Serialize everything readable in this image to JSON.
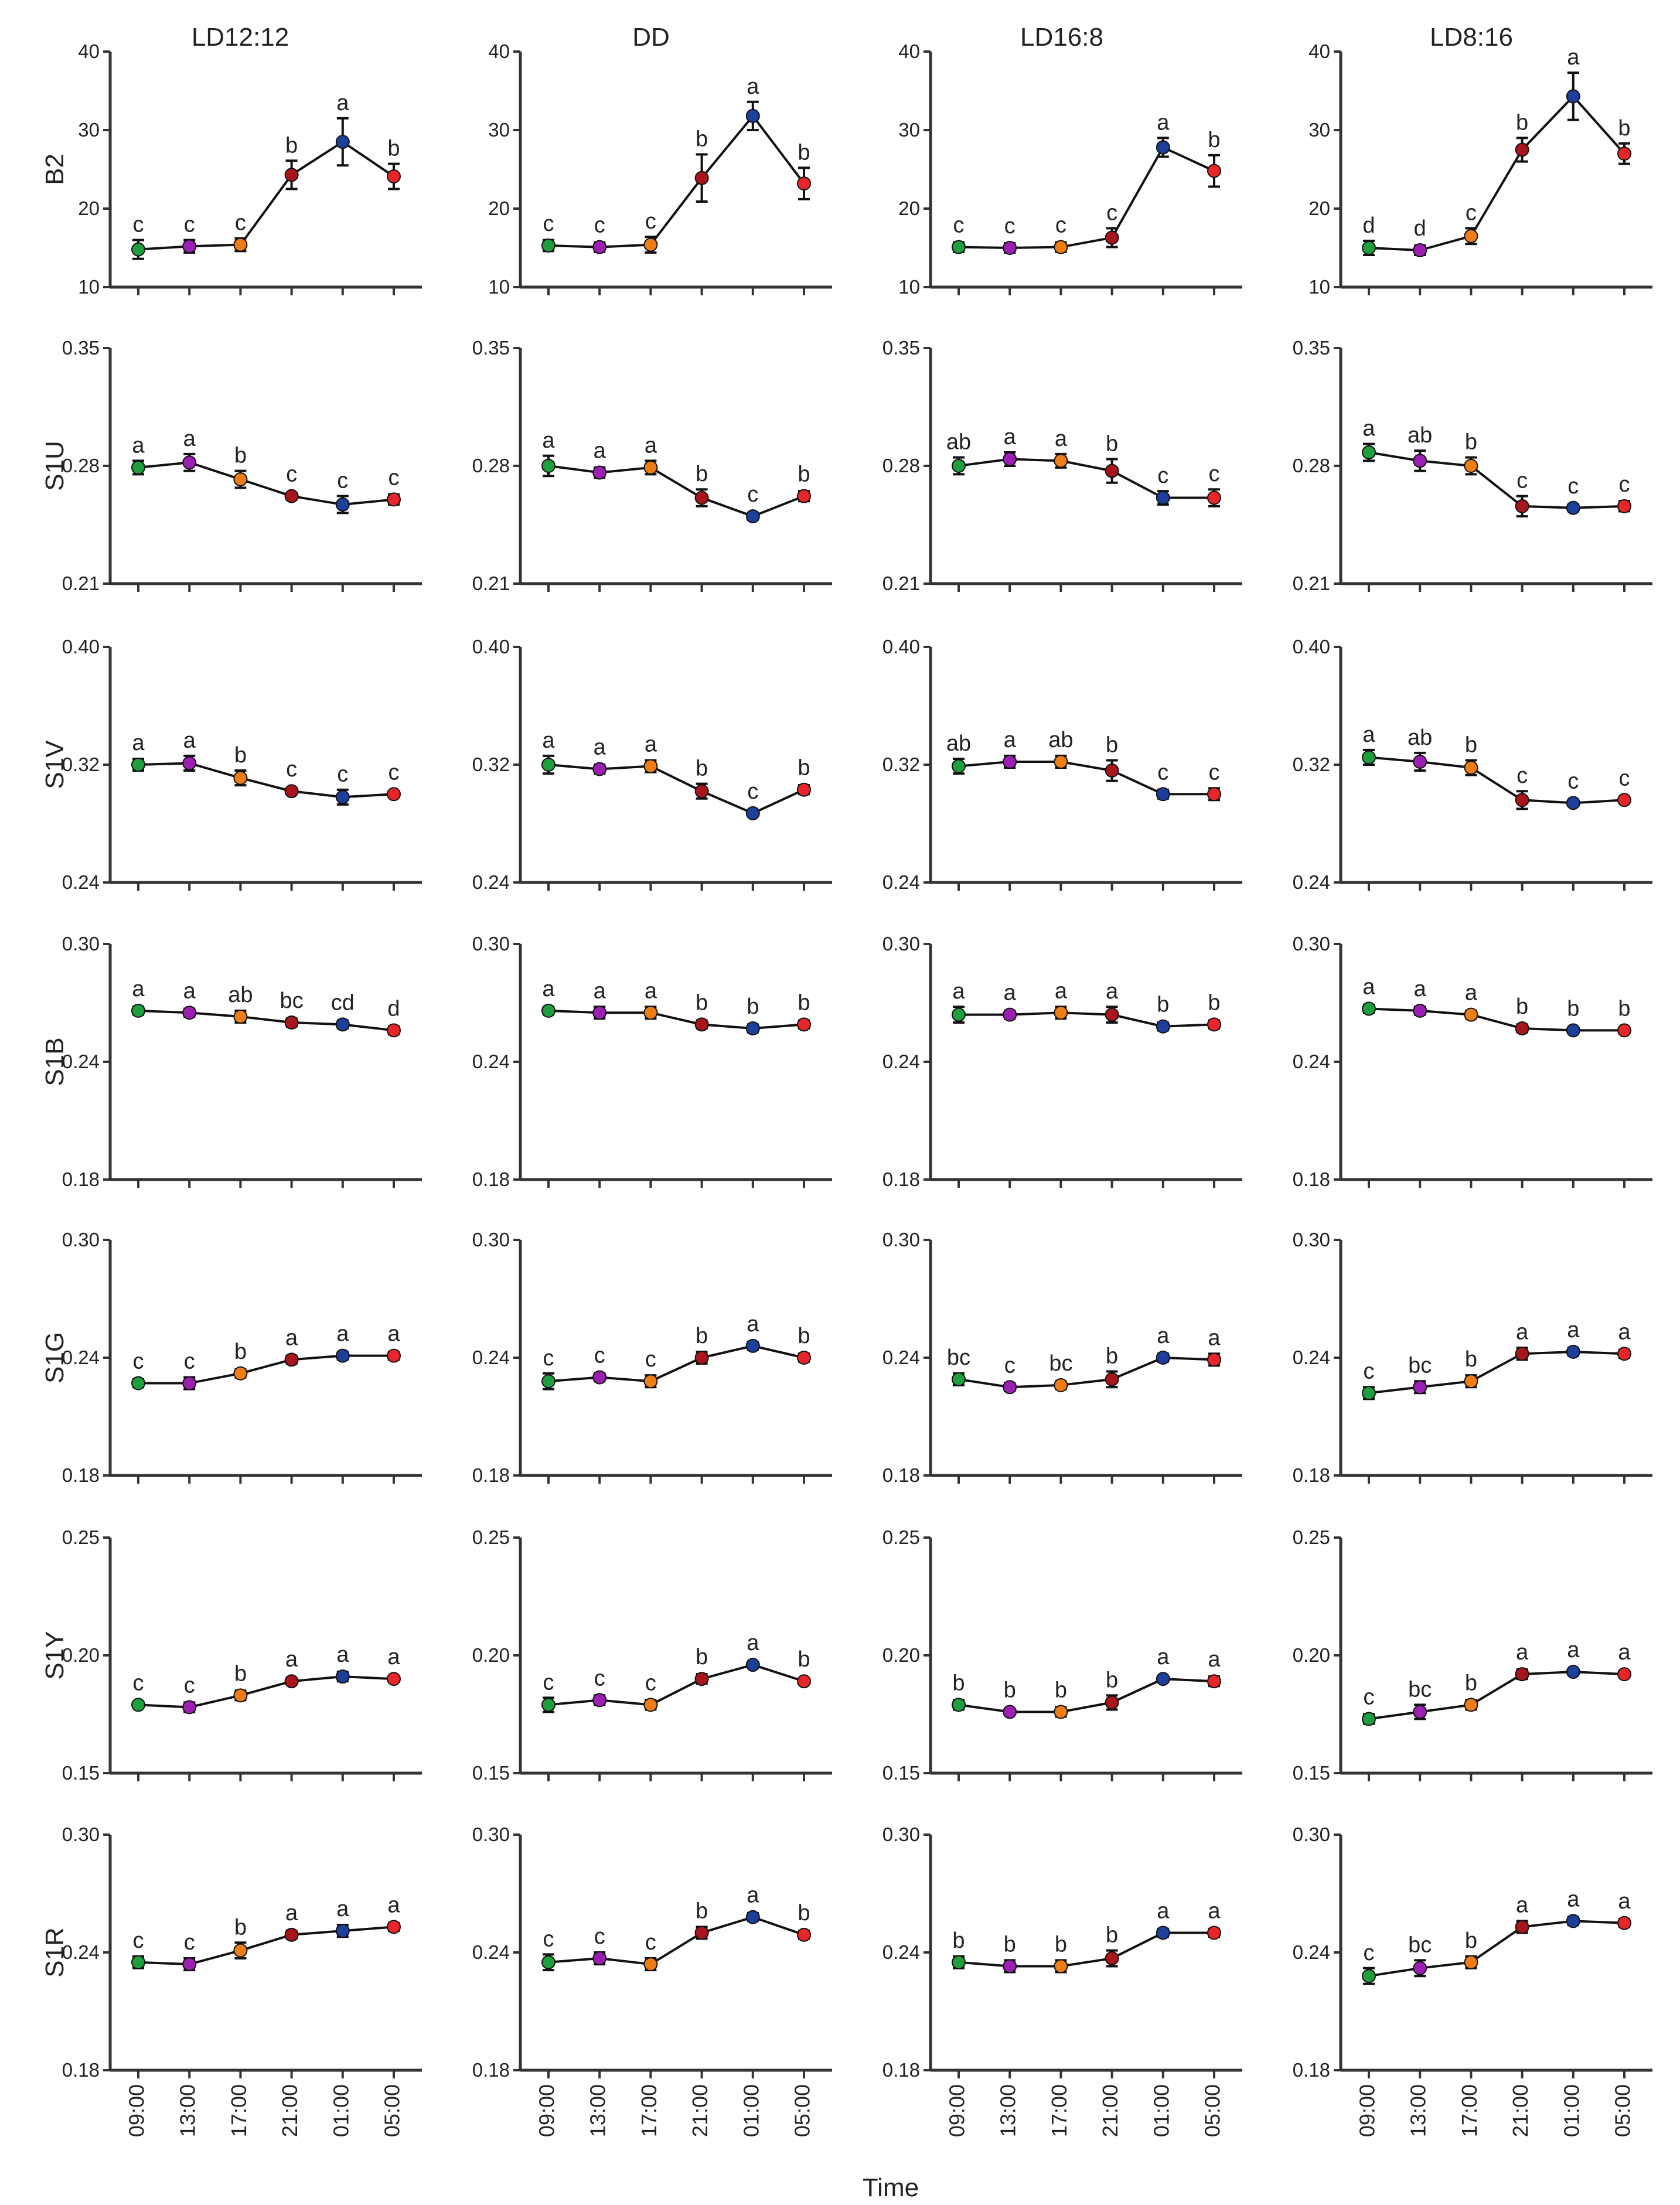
{
  "chart_data": {
    "type": "line",
    "layout": "7x4 grid of small-multiple line plots with error bars",
    "col_titles": [
      "LD12:12",
      "DD",
      "LD16:8",
      "LD8:16"
    ],
    "x": [
      "09:00",
      "13:00",
      "17:00",
      "21:00",
      "01:00",
      "05:00"
    ],
    "xlabel": "Time",
    "point_colors": [
      "#1e9e3c",
      "#9b1fb0",
      "#ef7d16",
      "#a8161c",
      "#1d3f9c",
      "#e8262a"
    ],
    "rows": [
      {
        "label": "B2",
        "ylim": [
          10,
          40
        ],
        "yticks": [
          "40",
          "30",
          "20",
          "10"
        ],
        "panels": [
          {
            "values": [
              14.8,
              15.2,
              15.4,
              24.3,
              28.5,
              24.1
            ],
            "err": [
              1.2,
              0.8,
              0.8,
              1.8,
              3.0,
              1.6
            ],
            "sig": [
              "c",
              "c",
              "c",
              "b",
              "a",
              "b"
            ]
          },
          {
            "values": [
              15.3,
              15.1,
              15.4,
              23.9,
              31.8,
              23.2
            ],
            "err": [
              0.7,
              0.6,
              1.0,
              3.0,
              1.8,
              2.0
            ],
            "sig": [
              "c",
              "c",
              "c",
              "b",
              "a",
              "b"
            ]
          },
          {
            "values": [
              15.1,
              15.0,
              15.1,
              16.3,
              27.8,
              24.8
            ],
            "err": [
              0.6,
              0.6,
              0.6,
              1.2,
              1.2,
              2.0
            ],
            "sig": [
              "c",
              "c",
              "c",
              "c",
              "a",
              "b"
            ]
          },
          {
            "values": [
              15.0,
              14.7,
              16.5,
              27.5,
              34.3,
              27.0
            ],
            "err": [
              0.9,
              0.6,
              1.0,
              1.5,
              3.0,
              1.3
            ],
            "sig": [
              "d",
              "d",
              "c",
              "b",
              "a",
              "b"
            ]
          }
        ]
      },
      {
        "label": "S1U",
        "ylim": [
          0.21,
          0.35
        ],
        "yticks": [
          "0.35",
          "0.28",
          "0.21"
        ],
        "panels": [
          {
            "values": [
              0.279,
              0.282,
              0.272,
              0.262,
              0.257,
              0.26
            ],
            "err": [
              0.004,
              0.005,
              0.005,
              0.002,
              0.005,
              0.003
            ],
            "sig": [
              "a",
              "a",
              "b",
              "c",
              "c",
              "c"
            ]
          },
          {
            "values": [
              0.28,
              0.276,
              0.279,
              0.261,
              0.25,
              0.262
            ],
            "err": [
              0.006,
              0.003,
              0.004,
              0.005,
              0.002,
              0.003
            ],
            "sig": [
              "a",
              "a",
              "a",
              "b",
              "c",
              "b"
            ]
          },
          {
            "values": [
              0.28,
              0.284,
              0.283,
              0.277,
              0.261,
              0.261
            ],
            "err": [
              0.005,
              0.004,
              0.004,
              0.007,
              0.004,
              0.005
            ],
            "sig": [
              "ab",
              "a",
              "a",
              "b",
              "c",
              "c"
            ]
          },
          {
            "values": [
              0.288,
              0.283,
              0.28,
              0.256,
              0.255,
              0.256
            ],
            "err": [
              0.005,
              0.006,
              0.005,
              0.006,
              0.002,
              0.003
            ],
            "sig": [
              "a",
              "ab",
              "b",
              "c",
              "c",
              "c"
            ]
          }
        ]
      },
      {
        "label": "S1V",
        "ylim": [
          0.24,
          0.4
        ],
        "yticks": [
          "0.40",
          "0.32",
          "0.24"
        ],
        "panels": [
          {
            "values": [
              0.32,
              0.321,
              0.311,
              0.302,
              0.298,
              0.3
            ],
            "err": [
              0.004,
              0.005,
              0.005,
              0.002,
              0.005,
              0.002
            ],
            "sig": [
              "a",
              "a",
              "b",
              "c",
              "c",
              "c"
            ]
          },
          {
            "values": [
              0.32,
              0.317,
              0.319,
              0.302,
              0.287,
              0.303
            ],
            "err": [
              0.006,
              0.003,
              0.004,
              0.005,
              0.002,
              0.003
            ],
            "sig": [
              "a",
              "a",
              "a",
              "b",
              "c",
              "b"
            ]
          },
          {
            "values": [
              0.319,
              0.322,
              0.322,
              0.316,
              0.3,
              0.3
            ],
            "err": [
              0.005,
              0.004,
              0.004,
              0.007,
              0.003,
              0.004
            ],
            "sig": [
              "ab",
              "a",
              "ab",
              "b",
              "c",
              "c"
            ]
          },
          {
            "values": [
              0.325,
              0.322,
              0.318,
              0.296,
              0.294,
              0.296
            ],
            "err": [
              0.005,
              0.006,
              0.005,
              0.006,
              0.002,
              0.002
            ],
            "sig": [
              "a",
              "ab",
              "b",
              "c",
              "c",
              "c"
            ]
          }
        ]
      },
      {
        "label": "S1B",
        "ylim": [
          0.18,
          0.3
        ],
        "yticks": [
          "0.30",
          "0.24",
          "0.18"
        ],
        "panels": [
          {
            "values": [
              0.266,
              0.265,
              0.263,
              0.26,
              0.259,
              0.256
            ],
            "err": [
              0.002,
              0.002,
              0.003,
              0.002,
              0.002,
              0.002
            ],
            "sig": [
              "a",
              "a",
              "ab",
              "bc",
              "cd",
              "d"
            ]
          },
          {
            "values": [
              0.266,
              0.265,
              0.265,
              0.259,
              0.257,
              0.259
            ],
            "err": [
              0.002,
              0.003,
              0.003,
              0.002,
              0.002,
              0.002
            ],
            "sig": [
              "a",
              "a",
              "a",
              "b",
              "b",
              "b"
            ]
          },
          {
            "values": [
              0.264,
              0.264,
              0.265,
              0.264,
              0.258,
              0.259
            ],
            "err": [
              0.004,
              0.002,
              0.003,
              0.004,
              0.002,
              0.002
            ],
            "sig": [
              "a",
              "a",
              "a",
              "a",
              "b",
              "b"
            ]
          },
          {
            "values": [
              0.267,
              0.266,
              0.264,
              0.257,
              0.256,
              0.256
            ],
            "err": [
              0.002,
              0.002,
              0.002,
              0.002,
              0.001,
              0.001
            ],
            "sig": [
              "a",
              "a",
              "a",
              "b",
              "b",
              "b"
            ]
          }
        ]
      },
      {
        "label": "S1G",
        "ylim": [
          0.18,
          0.3
        ],
        "yticks": [
          "0.30",
          "0.24",
          "0.18"
        ],
        "panels": [
          {
            "values": [
              0.227,
              0.227,
              0.232,
              0.239,
              0.241,
              0.241
            ],
            "err": [
              0.002,
              0.003,
              0.002,
              0.002,
              0.002,
              0.002
            ],
            "sig": [
              "c",
              "c",
              "b",
              "a",
              "a",
              "a"
            ]
          },
          {
            "values": [
              0.228,
              0.23,
              0.228,
              0.24,
              0.246,
              0.24
            ],
            "err": [
              0.004,
              0.002,
              0.003,
              0.003,
              0.002,
              0.002
            ],
            "sig": [
              "c",
              "c",
              "c",
              "b",
              "a",
              "b"
            ]
          },
          {
            "values": [
              0.229,
              0.225,
              0.226,
              0.229,
              0.24,
              0.239
            ],
            "err": [
              0.003,
              0.002,
              0.002,
              0.004,
              0.002,
              0.003
            ],
            "sig": [
              "bc",
              "c",
              "bc",
              "b",
              "a",
              "a"
            ]
          },
          {
            "values": [
              0.222,
              0.225,
              0.228,
              0.242,
              0.243,
              0.242
            ],
            "err": [
              0.003,
              0.003,
              0.003,
              0.003,
              0.002,
              0.002
            ],
            "sig": [
              "c",
              "bc",
              "b",
              "a",
              "a",
              "a"
            ]
          }
        ]
      },
      {
        "label": "S1Y",
        "ylim": [
          0.15,
          0.25
        ],
        "yticks": [
          "0.25",
          "0.20",
          "0.15"
        ],
        "panels": [
          {
            "values": [
              0.179,
              0.178,
              0.183,
              0.189,
              0.191,
              0.19
            ],
            "err": [
              0.001,
              0.002,
              0.002,
              0.001,
              0.002,
              0.001
            ],
            "sig": [
              "c",
              "c",
              "b",
              "a",
              "a",
              "a"
            ]
          },
          {
            "values": [
              0.179,
              0.181,
              0.179,
              0.19,
              0.196,
              0.189
            ],
            "err": [
              0.003,
              0.002,
              0.002,
              0.002,
              0.001,
              0.001
            ],
            "sig": [
              "c",
              "c",
              "c",
              "b",
              "a",
              "b"
            ]
          },
          {
            "values": [
              0.179,
              0.176,
              0.176,
              0.18,
              0.19,
              0.189
            ],
            "err": [
              0.002,
              0.001,
              0.002,
              0.003,
              0.001,
              0.002
            ],
            "sig": [
              "b",
              "b",
              "b",
              "b",
              "a",
              "a"
            ]
          },
          {
            "values": [
              0.173,
              0.176,
              0.179,
              0.192,
              0.193,
              0.192
            ],
            "err": [
              0.002,
              0.003,
              0.002,
              0.002,
              0.001,
              0.001
            ],
            "sig": [
              "c",
              "bc",
              "b",
              "a",
              "a",
              "a"
            ]
          }
        ]
      },
      {
        "label": "S1R",
        "ylim": [
          0.18,
          0.3
        ],
        "yticks": [
          "0.30",
          "0.24",
          "0.18"
        ],
        "panels": [
          {
            "values": [
              0.235,
              0.234,
              0.241,
              0.249,
              0.251,
              0.253
            ],
            "err": [
              0.003,
              0.003,
              0.004,
              0.002,
              0.003,
              0.002
            ],
            "sig": [
              "c",
              "c",
              "b",
              "a",
              "a",
              "a"
            ]
          },
          {
            "values": [
              0.235,
              0.237,
              0.234,
              0.25,
              0.258,
              0.249
            ],
            "err": [
              0.004,
              0.003,
              0.003,
              0.003,
              0.002,
              0.002
            ],
            "sig": [
              "c",
              "c",
              "c",
              "b",
              "a",
              "b"
            ]
          },
          {
            "values": [
              0.235,
              0.233,
              0.233,
              0.237,
              0.25,
              0.25
            ],
            "err": [
              0.003,
              0.003,
              0.003,
              0.004,
              0.002,
              0.002
            ],
            "sig": [
              "b",
              "b",
              "b",
              "b",
              "a",
              "a"
            ]
          },
          {
            "values": [
              0.228,
              0.232,
              0.235,
              0.253,
              0.256,
              0.255
            ],
            "err": [
              0.004,
              0.004,
              0.003,
              0.003,
              0.002,
              0.002
            ],
            "sig": [
              "c",
              "bc",
              "b",
              "a",
              "a",
              "a"
            ]
          }
        ]
      }
    ]
  }
}
